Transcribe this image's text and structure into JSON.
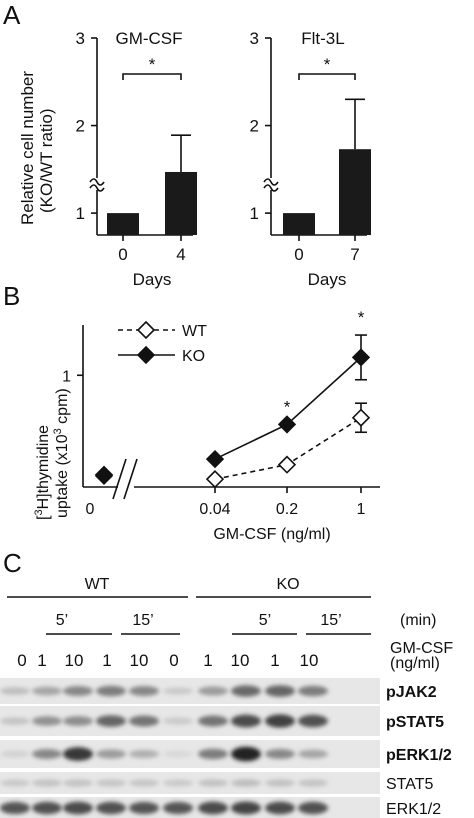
{
  "panel_a": {
    "letter": "A",
    "ylabel": [
      "Relative cell number",
      "(KO/WT ratio)"
    ],
    "sig_marker": "*",
    "charts": [
      {
        "title": "GM-CSF",
        "type": "bar",
        "xlabel": "Days",
        "categories": [
          "0",
          "4"
        ],
        "values": [
          1.0,
          1.47
        ],
        "errors": [
          0,
          0.42
        ],
        "ylim": [
          0.75,
          3
        ],
        "yticks": [
          "1",
          "2",
          "3"
        ]
      },
      {
        "title": "Flt-3L",
        "type": "bar",
        "xlabel": "Days",
        "categories": [
          "0",
          "7"
        ],
        "values": [
          1.0,
          1.73
        ],
        "errors": [
          0,
          0.57
        ],
        "ylim": [
          0.75,
          3
        ],
        "yticks": [
          "1",
          "2",
          "3"
        ]
      }
    ]
  },
  "panel_b": {
    "letter": "B",
    "sig_marker": "*",
    "chart_data": {
      "type": "line",
      "categories": [
        "0",
        "0.04",
        "0.2",
        "1"
      ],
      "xlabel": "GM-CSF (ng/ml)",
      "ylabel_parts": {
        "pre": "[",
        "sup1": "3",
        "mid": "H]thymidine",
        "line2a": "uptake (x10",
        "sup2": "3",
        "line2b": " cpm)"
      },
      "yticks": [
        "1"
      ],
      "ylim": [
        0,
        1.45
      ],
      "series": [
        {
          "name": "WT",
          "values": [
            0.1,
            0.07,
            0.2,
            0.62
          ],
          "errors": [
            0,
            0,
            0,
            0.13
          ],
          "style": "dashed-open"
        },
        {
          "name": "KO",
          "values": [
            0.11,
            0.25,
            0.56,
            1.16
          ],
          "errors": [
            0,
            0,
            0,
            0.2
          ],
          "style": "solid-filled"
        }
      ],
      "significant_at": [
        "0.2",
        "1"
      ]
    }
  },
  "panel_c": {
    "letter": "C",
    "groups": [
      "WT",
      "KO"
    ],
    "time_labels": [
      "5’",
      "15’",
      "5’",
      "15’"
    ],
    "time_unit": "(min)",
    "dose_header": [
      "GM-CSF",
      "(ng/ml)"
    ],
    "doses": [
      "0",
      "1",
      "10",
      "1",
      "10",
      "0",
      "1",
      "10",
      "1",
      "10"
    ],
    "blots": [
      {
        "label": "pJAK2",
        "bold": true,
        "intensity": [
          0.18,
          0.3,
          0.45,
          0.5,
          0.45,
          0.12,
          0.35,
          0.6,
          0.62,
          0.5
        ]
      },
      {
        "label": "pSTAT5",
        "bold": true,
        "intensity": [
          0.15,
          0.4,
          0.42,
          0.62,
          0.55,
          0.12,
          0.55,
          0.75,
          0.8,
          0.72
        ]
      },
      {
        "label": "pERK1/2",
        "bold": true,
        "intensity": [
          0.08,
          0.45,
          0.85,
          0.35,
          0.25,
          0.05,
          0.5,
          0.95,
          0.45,
          0.3
        ]
      },
      {
        "label": "STAT5",
        "bold": false,
        "intensity": [
          0.12,
          0.15,
          0.15,
          0.14,
          0.14,
          0.12,
          0.16,
          0.18,
          0.16,
          0.15
        ]
      },
      {
        "label": "ERK1/2",
        "bold": false,
        "intensity": [
          0.7,
          0.72,
          0.75,
          0.72,
          0.7,
          0.7,
          0.75,
          0.78,
          0.75,
          0.72
        ]
      }
    ]
  }
}
